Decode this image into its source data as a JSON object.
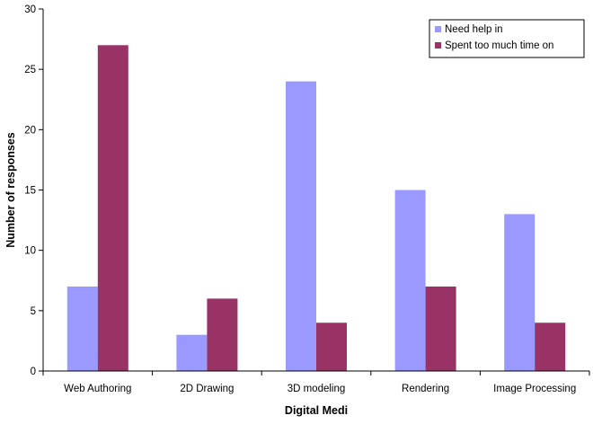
{
  "chart_data": {
    "type": "bar",
    "categories": [
      "Web Authoring",
      "2D Drawing",
      "3D modeling",
      "Rendering",
      "Image Processing"
    ],
    "series": [
      {
        "name": "Need help in",
        "values": [
          7,
          3,
          24,
          15,
          13
        ],
        "color": "#9999ff"
      },
      {
        "name": "Spent too much time on",
        "values": [
          27,
          6,
          4,
          7,
          4
        ],
        "color": "#993366"
      }
    ],
    "title": "",
    "xlabel": "Digital Medi",
    "ylabel": "Number of responses",
    "ylim": [
      0,
      30
    ],
    "yticks": [
      0,
      5,
      10,
      15,
      20,
      25,
      30
    ],
    "grid": false,
    "legend_position": "top-right"
  }
}
